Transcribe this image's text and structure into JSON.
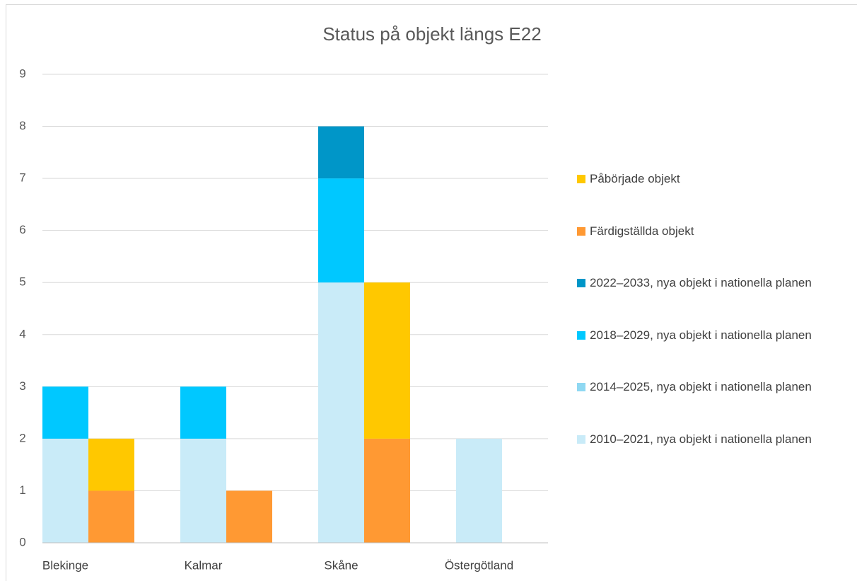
{
  "chart_data": {
    "type": "stacked-grouped-bar",
    "title": "Status på objekt längs E22",
    "categories": [
      "Blekinge",
      "Kalmar",
      "Skåne",
      "Östergötland"
    ],
    "series": [
      {
        "name": "2010–2021, nya objekt i nationella planen",
        "color": "#c9ebf8",
        "stack": "plan",
        "values": [
          2,
          2,
          5,
          2
        ]
      },
      {
        "name": "2014–2025, nya objekt i nationella planen",
        "color": "#8fd8f2",
        "stack": "plan",
        "values": [
          0,
          0,
          0,
          0
        ]
      },
      {
        "name": "2018–2029, nya objekt i nationella planen",
        "color": "#00c8ff",
        "stack": "plan",
        "values": [
          1,
          1,
          2,
          0
        ]
      },
      {
        "name": "2022–2033, nya objekt i nationella planen",
        "color": "#0096c8",
        "stack": "plan",
        "values": [
          0,
          0,
          1,
          0
        ]
      },
      {
        "name": "Färdigställda objekt",
        "color": "#ff9933",
        "stack": "status",
        "values": [
          1,
          1,
          2,
          0
        ]
      },
      {
        "name": "Påbörjade objekt",
        "color": "#ffc800",
        "stack": "status",
        "values": [
          1,
          0,
          3,
          0
        ]
      }
    ],
    "ylim": [
      0,
      9
    ],
    "yticks": [
      0,
      1,
      2,
      3,
      4,
      5,
      6,
      7,
      8,
      9
    ],
    "grid": true,
    "legend": "right"
  }
}
